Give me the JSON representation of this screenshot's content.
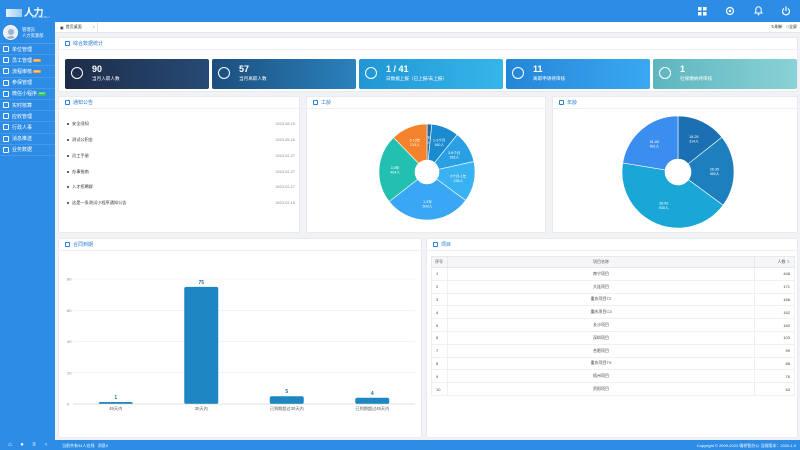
{
  "app": {
    "logo_text": "人力",
    "logo_sub": "HR RENLI"
  },
  "user": {
    "line1": "管理员",
    "line2": "人力资源部"
  },
  "sidebar": {
    "items": [
      {
        "label": "单位管理",
        "badge": ""
      },
      {
        "label": "员工管理",
        "badge": "new"
      },
      {
        "label": "流程审核",
        "badge": "new"
      },
      {
        "label": "参保管理",
        "badge": ""
      },
      {
        "label": "微信小程序",
        "badge": "new"
      },
      {
        "label": "实时核算",
        "badge": ""
      },
      {
        "label": "应收管理",
        "badge": ""
      },
      {
        "label": "行政人事",
        "badge": ""
      },
      {
        "label": "消息推送",
        "badge": ""
      },
      {
        "label": "业务数据",
        "badge": ""
      }
    ]
  },
  "tabs": {
    "home": "首页桌面",
    "close": "×",
    "refresh": "刷新",
    "fullscreen": "全屏"
  },
  "overview": {
    "title": "综合数据统计",
    "cards": [
      {
        "value": "90",
        "label": "当月入职人数",
        "color": "#1a3a5c"
      },
      {
        "value": "57",
        "label": "当月离职人数",
        "color": "#1f6fa6"
      },
      {
        "value": "1 / 41",
        "label": "日数据上报（已上报/未上报）",
        "color": "#2aa8dc"
      },
      {
        "value": "11",
        "label": "离职申请待审核",
        "color": "#38a9f0"
      },
      {
        "value": "1",
        "label": "社保缴纳待审核",
        "color": "#6fc2c9"
      }
    ]
  },
  "notices": {
    "title": "通知公告",
    "items": [
      {
        "text": "安全须知",
        "date": "2023-08-15"
      },
      {
        "text": "测试公积金",
        "date": "2023-05-16"
      },
      {
        "text": "员工手册",
        "date": "2023-02-27"
      },
      {
        "text": "办事指南",
        "date": "2023-02-27"
      },
      {
        "text": "入才招聘群",
        "date": "2023-02-17"
      },
      {
        "text": "这是一条测试小程序通知公告",
        "date": "2023-02-15"
      }
    ]
  },
  "seniority": {
    "title": "工龄"
  },
  "age": {
    "title": "年龄"
  },
  "contract": {
    "title": "合同到期"
  },
  "projects": {
    "title": "项目",
    "col_index": "序号",
    "col_name": "项目名称",
    "col_count": "人数",
    "rows": [
      {
        "idx": "1",
        "name": "南宁项目",
        "count": "448"
      },
      {
        "idx": "2",
        "name": "大连项目",
        "count": "171"
      },
      {
        "idx": "3",
        "name": "重庆项目T2",
        "count": "166"
      },
      {
        "idx": "4",
        "name": "重庆项目C3",
        "count": "162"
      },
      {
        "idx": "5",
        "name": "长沙项目",
        "count": "160"
      },
      {
        "idx": "6",
        "name": "深圳项目",
        "count": "103"
      },
      {
        "idx": "7",
        "name": "合肥项目",
        "count": "99"
      },
      {
        "idx": "8",
        "name": "重庆项目T5",
        "count": "88"
      },
      {
        "idx": "9",
        "name": "梧州项目",
        "count": "76"
      },
      {
        "idx": "10",
        "name": "资阳项目",
        "count": "63"
      }
    ]
  },
  "bottombar": {
    "status": "当前共有34人在线",
    "messages": "消息0",
    "copyright": "Copyright © 2009-2023 瑞祥智办公 当前版本：2020.1.0"
  },
  "chart_data": [
    {
      "type": "pie",
      "title": "工龄",
      "slices": [
        {
          "label": "30天内",
          "value": 28,
          "color": "#1f6fa6"
        },
        {
          "label": "1-3个月",
          "value": 160,
          "color": "#1b8bd0"
        },
        {
          "label": "3-6个月",
          "value": 185,
          "color": "#2aa0e4"
        },
        {
          "label": "6个月-1年",
          "value": 236,
          "color": "#38b2f0"
        },
        {
          "label": "1-3年",
          "value": 509,
          "color": "#3aa7f5"
        },
        {
          "label": "3-5年",
          "value": 404,
          "color": "#22c0b0"
        },
        {
          "label": "5-10年",
          "value": 213,
          "color": "#f5832b"
        }
      ],
      "value_unit": "人"
    },
    {
      "type": "pie",
      "title": "年龄",
      "slices": [
        {
          "label": "18-25",
          "value": 314,
          "color": "#1b6fb3"
        },
        {
          "label": "26-35",
          "value": 455,
          "color": "#1e7fbf"
        },
        {
          "label": "36-50",
          "value": 930,
          "color": "#1aa7d6"
        },
        {
          "label": "51-60",
          "value": 491,
          "color": "#3b8ef0"
        }
      ],
      "value_unit": "人"
    },
    {
      "type": "bar",
      "title": "合同到期",
      "categories": [
        "45天内",
        "30天内",
        "已到期超过30天内",
        "已到期超过45天内"
      ],
      "values": [
        1,
        75,
        5,
        4
      ],
      "yticks": [
        0,
        20,
        40,
        60,
        80
      ],
      "ylim": [
        0,
        80
      ]
    }
  ]
}
